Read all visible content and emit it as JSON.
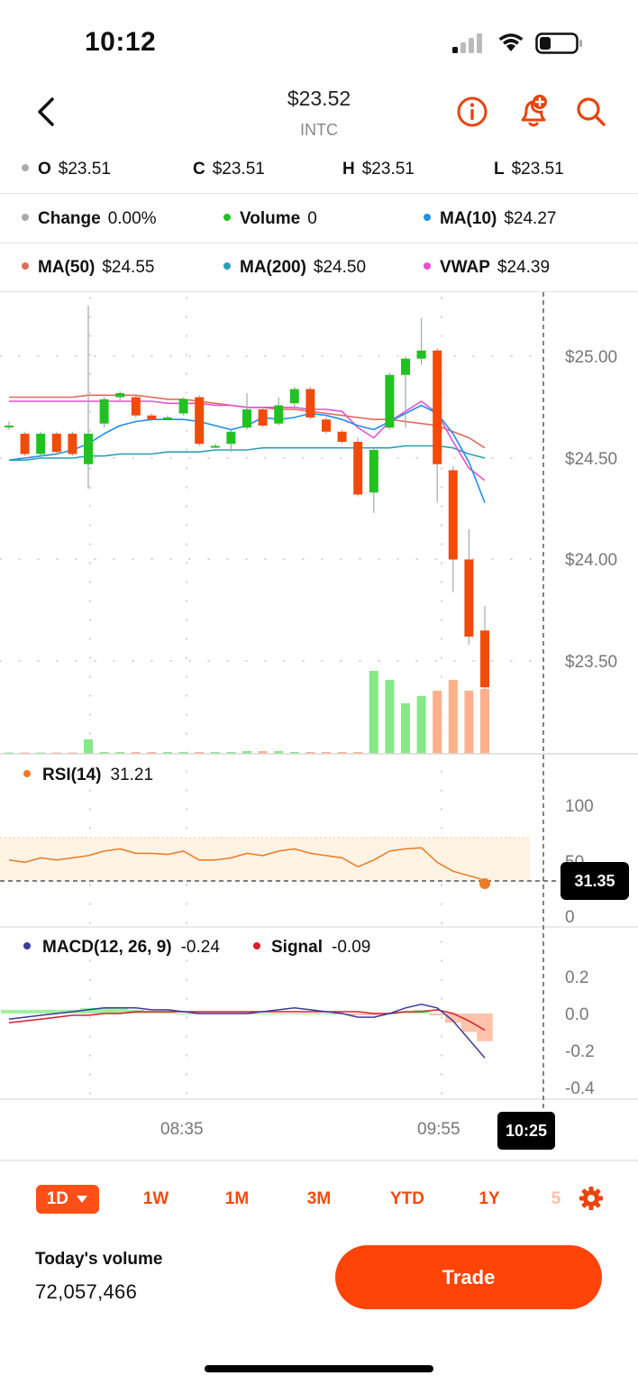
{
  "status_bar": {
    "time": "10:12"
  },
  "header": {
    "price": "$23.52",
    "ticker": "INTC"
  },
  "ohlc": [
    {
      "key": "O",
      "value": "$23.51",
      "color": "#aaaaaa"
    },
    {
      "key": "C",
      "value": "$23.51"
    },
    {
      "key": "H",
      "value": "$23.51"
    },
    {
      "key": "L",
      "value": "$23.51"
    }
  ],
  "indicators_row1": [
    {
      "key": "Change",
      "value": "0.00%",
      "color": "#aaaaaa"
    },
    {
      "key": "Volume",
      "value": "0",
      "color": "#22c122"
    },
    {
      "key": "MA(10)",
      "value": "$24.27",
      "color": "#1f8fe8"
    }
  ],
  "indicators_row2": [
    {
      "key": "MA(50)",
      "value": "$24.55",
      "color": "#e06a5c"
    },
    {
      "key": "MA(200)",
      "value": "$24.50",
      "color": "#2aa0b8"
    },
    {
      "key": "VWAP",
      "value": "$24.39",
      "color": "#e84fd0"
    }
  ],
  "price_axis": [
    "$25.00",
    "$24.50",
    "$24.00",
    "$23.50"
  ],
  "rsi": {
    "label": "RSI(14)",
    "value": "31.21",
    "badge": "31.35",
    "axis": [
      "100",
      "50",
      "0"
    ],
    "color": "#ec7a24"
  },
  "macd": {
    "label": "MACD(12, 26, 9)",
    "value": "-0.24",
    "signal_label": "Signal",
    "signal_value": "-0.09",
    "axis": [
      "0.2",
      "0.0",
      "-0.2",
      "-0.4"
    ],
    "color": "#3b3b9c",
    "signal_color": "#d81e2a"
  },
  "time_axis": {
    "labels": [
      "08:35",
      "09:55"
    ],
    "cursor": "10:25"
  },
  "ranges": [
    {
      "label": "1D",
      "active": true
    },
    {
      "label": "1W"
    },
    {
      "label": "1M"
    },
    {
      "label": "3M"
    },
    {
      "label": "YTD"
    },
    {
      "label": "1Y"
    }
  ],
  "footer": {
    "volume_label": "Today's volume",
    "volume_value": "72,057,466",
    "trade_label": "Trade"
  },
  "colors": {
    "up": "#22c122",
    "down": "#f24a0a",
    "accent": "#ff4407"
  },
  "chart_data": {
    "type": "candlestick",
    "y_range": [
      23.1,
      25.4
    ],
    "candles": [
      {
        "o": 24.66,
        "c": 24.66,
        "h": 24.68,
        "l": 24.64
      },
      {
        "o": 24.62,
        "c": 24.52,
        "h": 24.63,
        "l": 24.51
      },
      {
        "o": 24.52,
        "c": 24.62,
        "h": 24.63,
        "l": 24.51
      },
      {
        "o": 24.62,
        "c": 24.53,
        "h": 24.63,
        "l": 24.52
      },
      {
        "o": 24.62,
        "c": 24.52,
        "h": 24.63,
        "l": 24.51
      },
      {
        "o": 24.47,
        "c": 24.62,
        "h": 25.25,
        "l": 24.35
      },
      {
        "o": 24.67,
        "c": 24.79,
        "h": 24.8,
        "l": 24.65
      },
      {
        "o": 24.8,
        "c": 24.82,
        "h": 24.83,
        "l": 24.78
      },
      {
        "o": 24.8,
        "c": 24.71,
        "h": 24.81,
        "l": 24.7
      },
      {
        "o": 24.71,
        "c": 24.69,
        "h": 24.72,
        "l": 24.68
      },
      {
        "o": 24.7,
        "c": 24.7,
        "h": 24.71,
        "l": 24.69
      },
      {
        "o": 24.72,
        "c": 24.79,
        "h": 24.8,
        "l": 24.71
      },
      {
        "o": 24.8,
        "c": 24.57,
        "h": 24.81,
        "l": 24.56
      },
      {
        "o": 24.56,
        "c": 24.56,
        "h": 24.57,
        "l": 24.55
      },
      {
        "o": 24.57,
        "c": 24.63,
        "h": 24.64,
        "l": 24.53
      },
      {
        "o": 24.65,
        "c": 24.74,
        "h": 24.82,
        "l": 24.64
      },
      {
        "o": 24.74,
        "c": 24.66,
        "h": 24.75,
        "l": 24.65
      },
      {
        "o": 24.67,
        "c": 24.76,
        "h": 24.8,
        "l": 24.66
      },
      {
        "o": 24.77,
        "c": 24.84,
        "h": 24.85,
        "l": 24.75
      },
      {
        "o": 24.84,
        "c": 24.7,
        "h": 24.85,
        "l": 24.69
      },
      {
        "o": 24.69,
        "c": 24.63,
        "h": 24.7,
        "l": 24.62
      },
      {
        "o": 24.63,
        "c": 24.58,
        "h": 24.64,
        "l": 24.57
      },
      {
        "o": 24.58,
        "c": 24.32,
        "h": 24.6,
        "l": 24.31
      },
      {
        "o": 24.33,
        "c": 24.54,
        "h": 24.55,
        "l": 24.23
      },
      {
        "o": 24.65,
        "c": 24.91,
        "h": 24.92,
        "l": 24.64
      },
      {
        "o": 24.91,
        "c": 24.99,
        "h": 25.0,
        "l": 24.65
      },
      {
        "o": 24.99,
        "c": 25.03,
        "h": 25.19,
        "l": 24.96
      },
      {
        "o": 25.03,
        "c": 24.47,
        "h": 25.04,
        "l": 24.28
      },
      {
        "o": 24.44,
        "c": 24.0,
        "h": 24.46,
        "l": 23.84
      },
      {
        "o": 24.0,
        "c": 23.62,
        "h": 24.15,
        "l": 23.58
      },
      {
        "o": 23.65,
        "c": 23.37,
        "h": 23.77,
        "l": 23.36
      }
    ],
    "volume": [
      0.002,
      0.002,
      0.002,
      0.002,
      0.005,
      0.08,
      0.01,
      0.01,
      0.01,
      0.01,
      0.01,
      0.01,
      0.01,
      0.01,
      0.01,
      0.015,
      0.015,
      0.015,
      0.01,
      0.01,
      0.01,
      0.01,
      0.01,
      0.46,
      0.41,
      0.28,
      0.32,
      0.35,
      0.41,
      0.35,
      0.36
    ],
    "ma10": [
      24.49,
      24.5,
      24.51,
      24.52,
      24.54,
      24.57,
      24.62,
      24.66,
      24.68,
      24.69,
      24.69,
      24.69,
      24.68,
      24.66,
      24.64,
      24.66,
      24.7,
      24.69,
      24.7,
      24.72,
      24.71,
      24.69,
      24.66,
      24.64,
      24.68,
      24.72,
      24.76,
      24.72,
      24.62,
      24.48,
      24.28
    ],
    "ma50": [
      24.8,
      24.8,
      24.8,
      24.8,
      24.8,
      24.81,
      24.81,
      24.81,
      24.81,
      24.8,
      24.79,
      24.79,
      24.78,
      24.77,
      24.76,
      24.75,
      24.75,
      24.74,
      24.74,
      24.73,
      24.72,
      24.71,
      24.7,
      24.69,
      24.69,
      24.68,
      24.67,
      24.66,
      24.63,
      24.6,
      24.55
    ],
    "ma200": [
      24.49,
      24.49,
      24.5,
      24.5,
      24.5,
      24.51,
      24.51,
      24.52,
      24.52,
      24.52,
      24.53,
      24.53,
      24.53,
      24.54,
      24.54,
      24.54,
      24.55,
      24.55,
      24.55,
      24.55,
      24.55,
      24.55,
      24.55,
      24.55,
      24.55,
      24.56,
      24.56,
      24.56,
      24.55,
      24.52,
      24.5
    ],
    "vwap": [
      24.78,
      24.78,
      24.78,
      24.78,
      24.78,
      24.78,
      24.78,
      24.78,
      24.78,
      24.78,
      24.77,
      24.77,
      24.77,
      24.76,
      24.76,
      24.75,
      24.75,
      24.75,
      24.75,
      24.74,
      24.74,
      24.73,
      24.65,
      24.6,
      24.68,
      24.73,
      24.78,
      24.72,
      24.58,
      24.45,
      24.39
    ],
    "rsi_values": [
      50,
      48,
      52,
      50,
      52,
      54,
      58,
      60,
      56,
      56,
      55,
      58,
      50,
      50,
      52,
      56,
      54,
      58,
      60,
      56,
      54,
      52,
      44,
      50,
      58,
      60,
      61,
      48,
      40,
      36,
      32
    ],
    "macd_values": [
      -0.03,
      -0.02,
      -0.01,
      0.0,
      0.01,
      0.02,
      0.03,
      0.03,
      0.03,
      0.02,
      0.02,
      0.01,
      0.0,
      0.0,
      0.0,
      0.0,
      0.01,
      0.02,
      0.03,
      0.02,
      0.01,
      0.0,
      -0.02,
      -0.02,
      0.0,
      0.03,
      0.05,
      0.03,
      -0.04,
      -0.14,
      -0.24
    ],
    "signal_values": [
      -0.05,
      -0.04,
      -0.03,
      -0.02,
      -0.01,
      -0.01,
      0.0,
      0.0,
      0.01,
      0.01,
      0.01,
      0.01,
      0.01,
      0.01,
      0.01,
      0.01,
      0.01,
      0.01,
      0.01,
      0.01,
      0.01,
      0.01,
      0.01,
      0.0,
      0.0,
      0.01,
      0.01,
      0.02,
      0.0,
      -0.04,
      -0.09
    ],
    "macd_hist": [
      0.02,
      0.02,
      0.02,
      0.02,
      0.02,
      0.03,
      0.03,
      0.03,
      0.02,
      0.01,
      0.01,
      0.0,
      0.0,
      0.0,
      0.0,
      0.0,
      0.0,
      0.0,
      0.0,
      0.0,
      0.0,
      0.0,
      -0.01,
      -0.01,
      0.0,
      0.01,
      0.02,
      -0.01,
      -0.05,
      -0.1,
      -0.15
    ],
    "macd_range": [
      -0.45,
      0.25
    ]
  }
}
